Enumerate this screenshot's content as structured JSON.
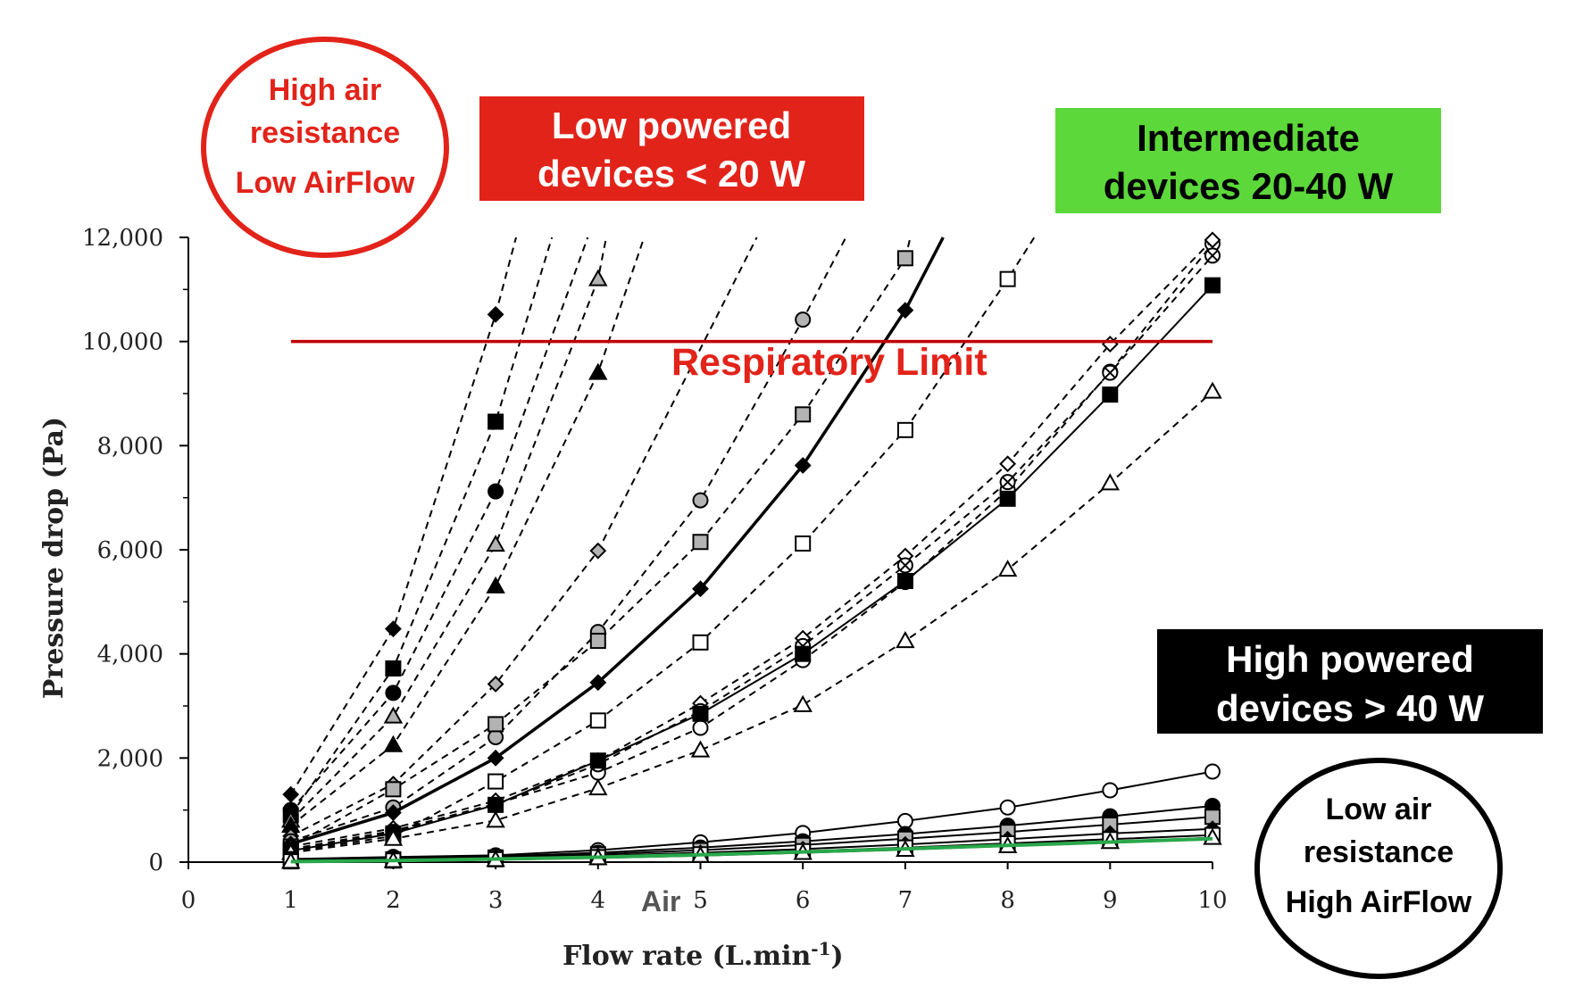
{
  "colors": {
    "red": "#e2231a",
    "green": "#5cd83a",
    "black": "#000000",
    "limit_line": "#c00000",
    "gray_marker": "#b3b3b3",
    "green_line": "#2aa84a"
  },
  "annotations": {
    "high_resistance": [
      "High air",
      "resistance",
      "Low AirFlow"
    ],
    "low_powered": [
      "Low powered",
      "devices < 20 W"
    ],
    "intermediate": [
      "Intermediate",
      "devices 20-40 W"
    ],
    "high_powered": [
      "High powered",
      "devices > 40 W"
    ],
    "low_resistance": [
      "Low air",
      "resistance",
      "High AirFlow"
    ],
    "respiratory_limit": "Respiratory Limit",
    "air": "Air"
  },
  "chart_data": {
    "type": "line",
    "xlabel": "Flow rate (L.min",
    "xlabel_sup": "-1",
    "xlabel_close": ")",
    "ylabel": "Pressure drop (Pa)",
    "xlim": [
      0,
      10
    ],
    "ylim": [
      0,
      12000
    ],
    "x_ticks": [
      "0",
      "1",
      "2",
      "3",
      "4",
      "5",
      "6",
      "7",
      "8",
      "9",
      "10"
    ],
    "y_ticks": [
      "0",
      "2,000",
      "4,000",
      "6,000",
      "8,000",
      "10,000",
      "12,000"
    ],
    "respiratory_limit_value": 10000,
    "series": [
      {
        "marker": "diamond",
        "fill": "black",
        "line": "dashed",
        "points": [
          [
            1,
            1300
          ],
          [
            2,
            4480
          ],
          [
            3,
            10520
          ],
          [
            3.2,
            12000
          ]
        ]
      },
      {
        "marker": "square",
        "fill": "black",
        "line": "dashed",
        "points": [
          [
            1,
            900
          ],
          [
            2,
            3720
          ],
          [
            3,
            8460
          ],
          [
            3.55,
            12000
          ]
        ]
      },
      {
        "marker": "circle",
        "fill": "black",
        "line": "dashed",
        "points": [
          [
            1,
            1000
          ],
          [
            2,
            3250
          ],
          [
            3,
            7120
          ],
          [
            3.9,
            12000
          ]
        ]
      },
      {
        "marker": "triangle",
        "fill": "gray",
        "line": "dashed",
        "points": [
          [
            1,
            800
          ],
          [
            2,
            2800
          ],
          [
            3,
            6100
          ],
          [
            4,
            11200
          ],
          [
            4.08,
            12000
          ]
        ]
      },
      {
        "marker": "triangle",
        "fill": "black",
        "line": "dashed",
        "points": [
          [
            1,
            700
          ],
          [
            2,
            2250
          ],
          [
            3,
            5300
          ],
          [
            4,
            9400
          ],
          [
            4.45,
            12000
          ]
        ]
      },
      {
        "marker": "diamond",
        "fill": "gray",
        "line": "dashed",
        "points": [
          [
            1,
            500
          ],
          [
            2,
            1500
          ],
          [
            3,
            3420
          ],
          [
            4,
            5980
          ],
          [
            5.55,
            12000
          ]
        ]
      },
      {
        "marker": "circle",
        "fill": "gray",
        "line": "dashed",
        "points": [
          [
            1,
            400
          ],
          [
            2,
            1050
          ],
          [
            3,
            2400
          ],
          [
            4,
            4420
          ],
          [
            5,
            6950
          ],
          [
            6,
            10420
          ],
          [
            6.42,
            12000
          ]
        ]
      },
      {
        "marker": "square",
        "fill": "gray",
        "line": "dashed",
        "points": [
          [
            1,
            300
          ],
          [
            2,
            1400
          ],
          [
            3,
            2650
          ],
          [
            4,
            4250
          ],
          [
            5,
            6150
          ],
          [
            6,
            8600
          ],
          [
            7,
            11600
          ],
          [
            7.05,
            12000
          ]
        ]
      },
      {
        "marker": "diamond",
        "fill": "black",
        "line": "solid",
        "points": [
          [
            1,
            350
          ],
          [
            2,
            950
          ],
          [
            3,
            2000
          ],
          [
            4,
            3450
          ],
          [
            5,
            5250
          ],
          [
            6,
            7620
          ],
          [
            7,
            10600
          ],
          [
            7.37,
            12000
          ]
        ]
      },
      {
        "marker": "square",
        "fill": "white",
        "line": "dashed",
        "points": [
          [
            1,
            200
          ],
          [
            2,
            500
          ],
          [
            3,
            1550
          ],
          [
            4,
            2720
          ],
          [
            5,
            4220
          ],
          [
            6,
            6120
          ],
          [
            7,
            8300
          ],
          [
            8,
            11200
          ],
          [
            8.26,
            12000
          ]
        ]
      },
      {
        "marker": "circle",
        "fill": "white",
        "line": "dashed",
        "points": [
          [
            1,
            250
          ],
          [
            2,
            600
          ],
          [
            3,
            1120
          ],
          [
            4,
            1720
          ],
          [
            5,
            2580
          ],
          [
            6,
            3880
          ],
          [
            7,
            5380
          ],
          [
            8,
            7150
          ],
          [
            9,
            9420
          ],
          [
            10,
            11880
          ]
        ]
      },
      {
        "marker": "diamond",
        "fill": "white",
        "line": "dashed",
        "points": [
          [
            1,
            300
          ],
          [
            2,
            650
          ],
          [
            3,
            1180
          ],
          [
            4,
            1950
          ],
          [
            5,
            3050
          ],
          [
            6,
            4300
          ],
          [
            7,
            5880
          ],
          [
            8,
            7650
          ],
          [
            9,
            9950
          ],
          [
            10,
            11950
          ]
        ]
      },
      {
        "marker": "cross",
        "fill": "white",
        "line": "dashed",
        "points": [
          [
            1,
            250
          ],
          [
            2,
            580
          ],
          [
            3,
            1100
          ],
          [
            4,
            1880
          ],
          [
            5,
            2900
          ],
          [
            6,
            4150
          ],
          [
            7,
            5700
          ],
          [
            8,
            7300
          ],
          [
            9,
            9400
          ],
          [
            10,
            11650
          ]
        ]
      },
      {
        "marker": "square",
        "fill": "black",
        "line": "solid",
        "points": [
          [
            1,
            220
          ],
          [
            2,
            550
          ],
          [
            3,
            1100
          ],
          [
            4,
            1950
          ],
          [
            5,
            2850
          ],
          [
            6,
            4000
          ],
          [
            7,
            5400
          ],
          [
            8,
            6980
          ],
          [
            9,
            8980
          ],
          [
            10,
            11080
          ]
        ]
      },
      {
        "marker": "triangle",
        "fill": "white",
        "line": "dashed",
        "points": [
          [
            1,
            180
          ],
          [
            2,
            450
          ],
          [
            3,
            800
          ],
          [
            4,
            1420
          ],
          [
            5,
            2150
          ],
          [
            6,
            3020
          ],
          [
            7,
            4250
          ],
          [
            8,
            5620
          ],
          [
            9,
            7280
          ],
          [
            10,
            9040
          ]
        ]
      },
      {
        "marker": "circle",
        "fill": "white",
        "line": "solid",
        "points": [
          [
            1,
            60
          ],
          [
            2,
            100
          ],
          [
            3,
            130
          ],
          [
            4,
            230
          ],
          [
            5,
            380
          ],
          [
            6,
            560
          ],
          [
            7,
            790
          ],
          [
            8,
            1050
          ],
          [
            9,
            1380
          ],
          [
            10,
            1740
          ]
        ]
      },
      {
        "marker": "circle",
        "fill": "black",
        "line": "solid",
        "points": [
          [
            1,
            40
          ],
          [
            2,
            70
          ],
          [
            3,
            110
          ],
          [
            4,
            180
          ],
          [
            5,
            280
          ],
          [
            6,
            400
          ],
          [
            7,
            540
          ],
          [
            8,
            700
          ],
          [
            9,
            880
          ],
          [
            10,
            1080
          ]
        ]
      },
      {
        "marker": "square",
        "fill": "gray",
        "line": "solid",
        "points": [
          [
            1,
            30
          ],
          [
            2,
            55
          ],
          [
            3,
            90
          ],
          [
            4,
            150
          ],
          [
            5,
            230
          ],
          [
            6,
            330
          ],
          [
            7,
            450
          ],
          [
            8,
            580
          ],
          [
            9,
            720
          ],
          [
            10,
            870
          ]
        ]
      },
      {
        "marker": "diamond",
        "fill": "black",
        "line": "solid",
        "points": [
          [
            1,
            20
          ],
          [
            2,
            40
          ],
          [
            3,
            70
          ],
          [
            4,
            120
          ],
          [
            5,
            180
          ],
          [
            6,
            250
          ],
          [
            7,
            340
          ],
          [
            8,
            440
          ],
          [
            9,
            550
          ],
          [
            10,
            640
          ]
        ]
      },
      {
        "marker": "square",
        "fill": "white",
        "line": "solid",
        "points": [
          [
            1,
            15
          ],
          [
            2,
            30
          ],
          [
            3,
            55
          ],
          [
            4,
            95
          ],
          [
            5,
            150
          ],
          [
            6,
            210
          ],
          [
            7,
            280
          ],
          [
            8,
            360
          ],
          [
            9,
            440
          ],
          [
            10,
            520
          ]
        ]
      },
      {
        "marker": "triangle",
        "fill": "white",
        "line": "solid",
        "points": [
          [
            1,
            10
          ],
          [
            2,
            25
          ],
          [
            3,
            45
          ],
          [
            4,
            80
          ],
          [
            5,
            125
          ],
          [
            6,
            180
          ],
          [
            7,
            240
          ],
          [
            8,
            310
          ],
          [
            9,
            390
          ],
          [
            10,
            470
          ]
        ]
      },
      {
        "marker": "none",
        "fill": "none",
        "line": "green",
        "points": [
          [
            1,
            10
          ],
          [
            2,
            30
          ],
          [
            3,
            60
          ],
          [
            4,
            95
          ],
          [
            5,
            140
          ],
          [
            6,
            195
          ],
          [
            7,
            255
          ],
          [
            8,
            320
          ],
          [
            9,
            385
          ],
          [
            10,
            450
          ]
        ]
      }
    ]
  }
}
